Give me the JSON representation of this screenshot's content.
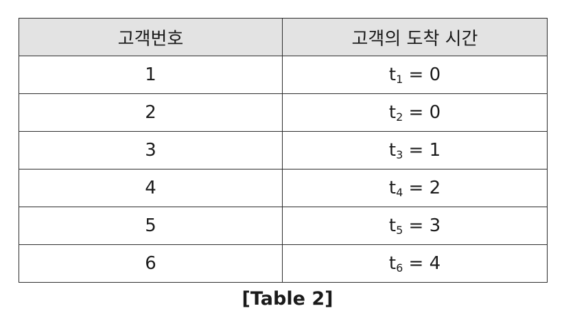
{
  "table": {
    "headers": [
      "고객번호",
      "고객의 도착 시간"
    ],
    "rows": [
      {
        "customer_no": "1",
        "var": "t",
        "sub": "1",
        "eq": " = ",
        "value": "0"
      },
      {
        "customer_no": "2",
        "var": "t",
        "sub": "2",
        "eq": " = ",
        "value": "0"
      },
      {
        "customer_no": "3",
        "var": "t",
        "sub": "3",
        "eq": " = ",
        "value": "1"
      },
      {
        "customer_no": "4",
        "var": "t",
        "sub": "4",
        "eq": " = ",
        "value": "2"
      },
      {
        "customer_no": "5",
        "var": "t",
        "sub": "5",
        "eq": " = ",
        "value": "3"
      },
      {
        "customer_no": "6",
        "var": "t",
        "sub": "6",
        "eq": " = ",
        "value": "4"
      }
    ]
  },
  "caption": "[Table 2]"
}
